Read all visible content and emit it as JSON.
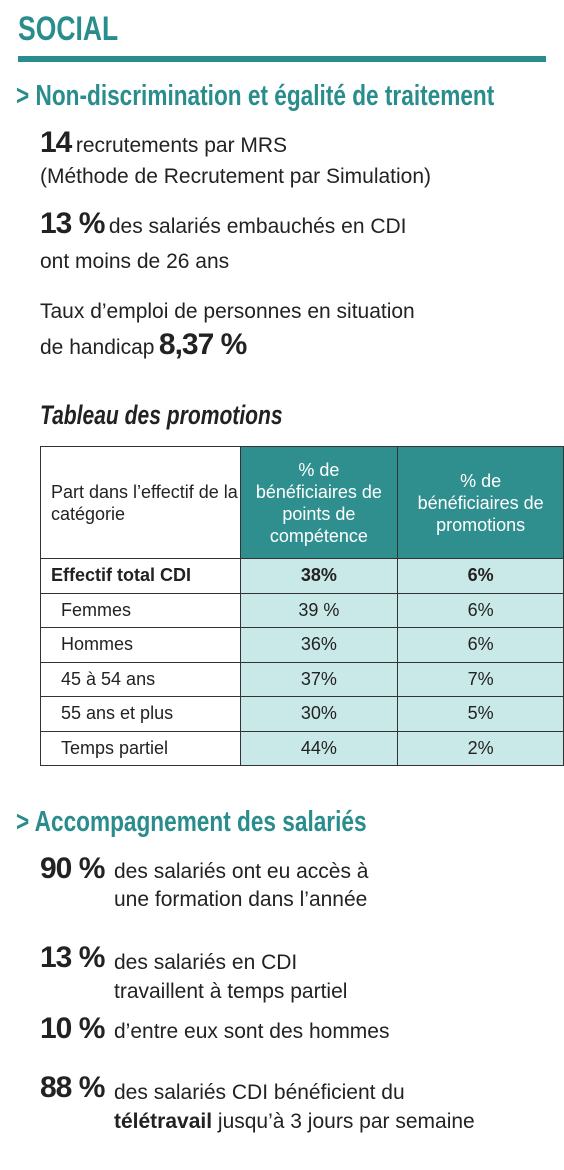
{
  "header": {
    "title": "SOCIAL"
  },
  "section1": {
    "heading": "> Non-discrimination et égalité de traitement",
    "stats": [
      {
        "figure": "14",
        "line1": "recrutements par MRS",
        "line2": "(Méthode de Recrutement par Simulation)"
      },
      {
        "figure": "13 %",
        "line1": "des salariés embauchés en CDI",
        "line2": "ont moins de 26 ans"
      },
      {
        "line1": "Taux d’emploi de personnes en situation",
        "line2": "de handicap",
        "figure": "8,37 %"
      }
    ]
  },
  "table": {
    "title": "Tableau des promotions",
    "header": [
      "Part dans l’effectif de la catégorie",
      "% de bénéficiaires de points de compétence",
      "% de bénéficiaires de promotions"
    ],
    "rows": [
      [
        "Effectif total CDI",
        "38%",
        "6%"
      ],
      [
        "Femmes",
        "39 %",
        "6%"
      ],
      [
        "Hommes",
        "36%",
        "6%"
      ],
      [
        "45 à 54 ans",
        "37%",
        "7%"
      ],
      [
        "55 ans et plus",
        "30%",
        "5%"
      ],
      [
        "Temps partiel",
        "44%",
        "2%"
      ]
    ]
  },
  "section2": {
    "heading": "> Accompagnement des salariés",
    "stats": [
      {
        "figure": "90 %",
        "line1": "des salariés ont eu accès à",
        "line2": "une formation dans l’année"
      },
      {
        "figure": "13 %",
        "line1": "des salariés en CDI",
        "line2": "travaillent à temps partiel"
      },
      {
        "figure": "10 %",
        "line1": "d’entre eux sont des hommes"
      },
      {
        "figure": "88 %",
        "line1": "des salariés CDI bénéficient du",
        "emphasis": "télétravail",
        "line2": "jusqu’à 3 jours par semaine"
      }
    ]
  }
}
